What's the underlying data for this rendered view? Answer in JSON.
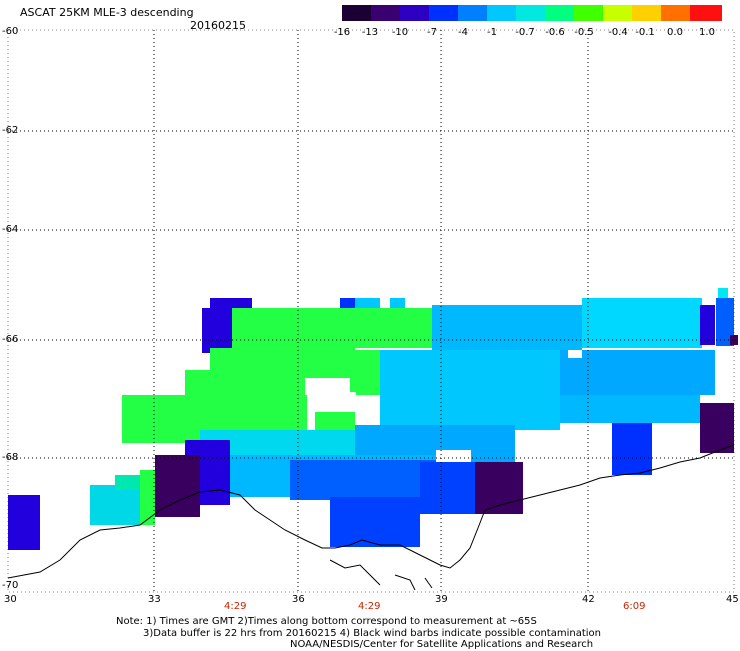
{
  "header": {
    "title": "ASCAT 25KM MLE-3 descending",
    "date": "20160215"
  },
  "colorbar": {
    "labels": [
      "-16",
      "-13",
      "-10",
      "-7",
      "-4",
      "-1",
      "-0.7",
      "-0.6",
      "-0.5",
      "-0.4",
      "-0.1",
      "0.0",
      "1.0"
    ],
    "colors": [
      "#1a0033",
      "#3a0070",
      "#2b00c0",
      "#0030ff",
      "#0080ff",
      "#00c8ff",
      "#00e8e0",
      "#00ff80",
      "#40ff00",
      "#c8ff00",
      "#ffd000",
      "#ff7000",
      "#ff1010"
    ]
  },
  "axes": {
    "lat_labels": [
      "-60",
      "-62",
      "-64",
      "-66",
      "-68",
      "-70"
    ],
    "lon_labels": [
      "30",
      "33",
      "36",
      "39",
      "42",
      "45"
    ],
    "time_labels": [
      "4:29",
      "4:29",
      "6:09"
    ]
  },
  "footer": {
    "line1": "Note: 1) Times are GMT 2)Times along bottom correspond to measurement at ~65S",
    "line2": "3)Data buffer is 22 hrs from 20160215 4) Black wind barbs indicate possible contamination",
    "line3": "NOAA/NESDIS/Center for Satellite Applications and Research"
  },
  "colors": {
    "green": "#22ff44",
    "cyan": "#00e0f0",
    "sky": "#00b8ff",
    "blue": "#0060ff",
    "deepblue": "#2200dd",
    "purple": "#3a0060"
  }
}
